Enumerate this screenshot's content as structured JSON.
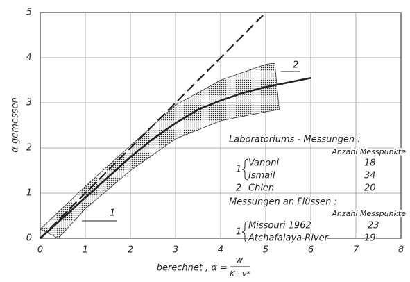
{
  "chart_data": {
    "type": "line",
    "xlim": [
      0,
      8
    ],
    "ylim": [
      0,
      5
    ],
    "xticks": [
      0,
      1,
      2,
      3,
      4,
      5,
      6,
      7,
      8
    ],
    "yticks": [
      0,
      1,
      2,
      3,
      4,
      5
    ],
    "grid": true,
    "y_label": "α gemessen",
    "x_label": "berechnet , α =",
    "x_label_numerator": "w",
    "x_label_denominator": "K · v*",
    "series": [
      {
        "color": "#222",
        "dashed": false,
        "x": [
          0,
          0.5,
          1,
          1.5,
          2,
          2.5,
          3,
          3.5,
          4,
          4.5,
          5,
          5.5,
          6
        ],
        "values": [
          0,
          0.45,
          0.9,
          1.35,
          1.8,
          2.2,
          2.55,
          2.85,
          3.05,
          3.22,
          3.35,
          3.45,
          3.55
        ]
      },
      {
        "color": "#222",
        "dashed": true,
        "x": [
          0,
          5
        ],
        "values": [
          0,
          5
        ]
      }
    ],
    "band": {
      "upper": {
        "x": [
          0,
          1,
          2,
          3,
          4,
          5,
          5.2
        ],
        "values": [
          0.2,
          1.15,
          2.05,
          2.95,
          3.5,
          3.85,
          3.88
        ]
      },
      "lower": {
        "x": [
          0.4,
          1,
          2,
          3,
          4,
          5,
          5.3
        ],
        "values": [
          0,
          0.65,
          1.5,
          2.2,
          2.6,
          2.8,
          2.85
        ]
      }
    },
    "annotations": [
      "1",
      "2"
    ],
    "legend": {
      "heading1": "Laboratoriums - Messungen :",
      "count_header1": "Anzahl Messpunkte",
      "group1_number": "1",
      "rows1": [
        [
          "Vanoni",
          "18"
        ],
        [
          "Ismail",
          "34"
        ]
      ],
      "group2_number": "2",
      "rows2": [
        [
          "Chien",
          "20"
        ]
      ],
      "heading2": "Messungen an Flüssen :",
      "count_header2": "Anzahl Messpunkte",
      "group3_number": "1",
      "rows3": [
        [
          "Missouri 1962",
          "23"
        ],
        [
          "Atchafalaya River",
          "19"
        ]
      ]
    }
  }
}
